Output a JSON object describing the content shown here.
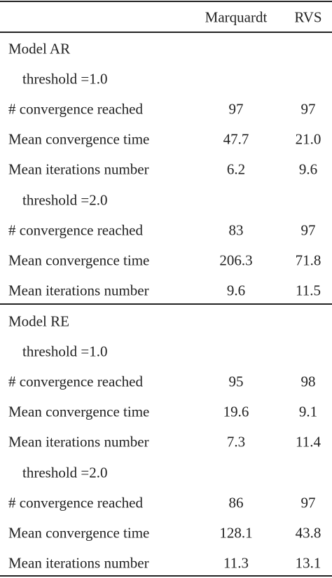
{
  "table": {
    "header": [
      "Marquardt",
      "RVS"
    ],
    "sections": [
      {
        "model": "Model AR",
        "groups": [
          {
            "threshold": "threshold =1.0",
            "rows": [
              [
                "# convergence reached",
                "97",
                "97"
              ],
              [
                "Mean convergence time",
                "47.7",
                "21.0"
              ],
              [
                "Mean iterations number",
                "6.2",
                "9.6"
              ]
            ]
          },
          {
            "threshold": "threshold =2.0",
            "rows": [
              [
                "# convergence reached",
                "83",
                "97"
              ],
              [
                "Mean convergence time",
                "206.3",
                "71.8"
              ],
              [
                "Mean iterations number",
                "9.6",
                "11.5"
              ]
            ]
          }
        ]
      },
      {
        "model": "Model RE",
        "groups": [
          {
            "threshold": "threshold =1.0",
            "rows": [
              [
                "# convergence reached",
                "95",
                "98"
              ],
              [
                "Mean convergence time",
                "19.6",
                "9.1"
              ],
              [
                "Mean iterations number",
                "7.3",
                "11.4"
              ]
            ]
          },
          {
            "threshold": "threshold =2.0",
            "rows": [
              [
                "# convergence reached",
                "86",
                "97"
              ],
              [
                "Mean convergence time",
                "128.1",
                "43.8"
              ],
              [
                "Mean iterations number",
                "11.3",
                "13.1"
              ]
            ]
          }
        ]
      }
    ]
  }
}
